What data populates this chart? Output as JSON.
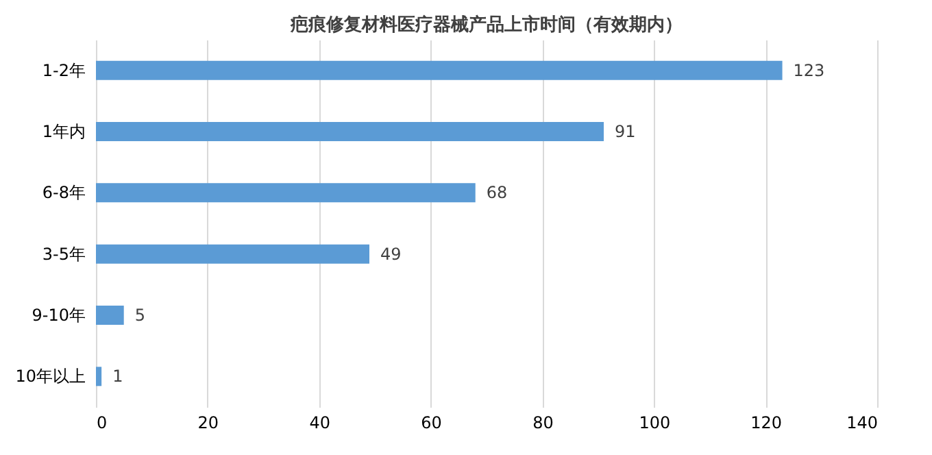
{
  "chart_data": {
    "type": "bar",
    "orientation": "horizontal",
    "title": "疤痕修复材料医疗器械产品上市时间（有效期内）",
    "categories": [
      "1-2年",
      "1年内",
      "6-8年",
      "3-5年",
      "9-10年",
      "10年以上"
    ],
    "values": [
      123,
      91,
      68,
      49,
      5,
      1
    ],
    "color": "#5b9bd5",
    "data_labels": true,
    "grid": "x",
    "xlim": [
      0,
      140
    ],
    "xticks": [
      0,
      20,
      40,
      60,
      80,
      100,
      120,
      140
    ]
  }
}
